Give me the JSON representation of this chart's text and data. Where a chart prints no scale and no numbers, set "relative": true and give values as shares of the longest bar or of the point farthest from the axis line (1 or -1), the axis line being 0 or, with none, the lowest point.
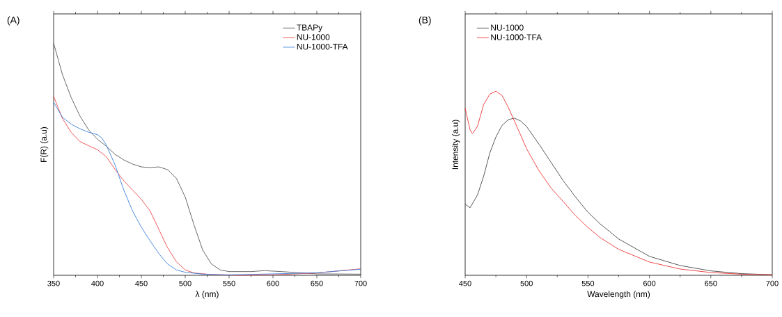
{
  "chart_data": [
    {
      "type": "line",
      "title": "(A)",
      "xlabel": "λ (nm)",
      "ylabel": "F(R) (a.u)",
      "relative": true,
      "tick_labels": "x",
      "legend": "top right",
      "xlim": [
        350,
        700
      ],
      "xticks": [
        350,
        400,
        450,
        500,
        550,
        600,
        650,
        700
      ],
      "series": [
        {
          "name": "TBAPy",
          "color": "#555555",
          "x": [
            350,
            360,
            370,
            380,
            390,
            400,
            410,
            420,
            430,
            440,
            450,
            460,
            470,
            480,
            490,
            500,
            510,
            520,
            530,
            540,
            550,
            575,
            590,
            610,
            650,
            700
          ],
          "values": [
            1.0,
            0.865,
            0.766,
            0.686,
            0.626,
            0.586,
            0.556,
            0.521,
            0.497,
            0.479,
            0.467,
            0.464,
            0.467,
            0.455,
            0.417,
            0.337,
            0.217,
            0.108,
            0.048,
            0.023,
            0.016,
            0.016,
            0.02,
            0.016,
            0.006,
            0.005
          ]
        },
        {
          "name": "NU-1000",
          "color": "#ee4444",
          "x": [
            350,
            360,
            370,
            380,
            390,
            400,
            410,
            420,
            430,
            440,
            450,
            460,
            470,
            480,
            490,
            500,
            510,
            530,
            560,
            600,
            650,
            700
          ],
          "values": [
            0.771,
            0.676,
            0.616,
            0.576,
            0.558,
            0.541,
            0.511,
            0.456,
            0.407,
            0.367,
            0.327,
            0.277,
            0.197,
            0.118,
            0.058,
            0.023,
            0.01,
            0.003,
            0.0,
            0.002,
            0.01,
            0.028
          ]
        },
        {
          "name": "NU-1000-TFA",
          "color": "#3a7fdc",
          "x": [
            350,
            360,
            370,
            380,
            390,
            400,
            405,
            410,
            420,
            430,
            440,
            450,
            460,
            470,
            480,
            490,
            500,
            520,
            550,
            600,
            650,
            700
          ],
          "values": [
            0.746,
            0.681,
            0.651,
            0.631,
            0.616,
            0.606,
            0.591,
            0.561,
            0.476,
            0.367,
            0.277,
            0.207,
            0.148,
            0.093,
            0.048,
            0.023,
            0.013,
            0.005,
            0.002,
            0.006,
            0.011,
            0.026
          ]
        }
      ]
    },
    {
      "type": "line",
      "title": "(B)",
      "xlabel": "Wavelength (nm)",
      "ylabel": "Intensity (a.u)",
      "relative": true,
      "tick_labels": "x",
      "legend": "top left",
      "xlim": [
        450,
        700
      ],
      "xticks": [
        450,
        500,
        550,
        600,
        650,
        700
      ],
      "series": [
        {
          "name": "NU-1000",
          "color": "#444444",
          "x": [
            450,
            454,
            460,
            465,
            470,
            475,
            480,
            485,
            490,
            495,
            500,
            510,
            520,
            530,
            540,
            550,
            560,
            575,
            600,
            625,
            650,
            675,
            700
          ],
          "values": [
            0.386,
            0.367,
            0.436,
            0.537,
            0.663,
            0.751,
            0.814,
            0.845,
            0.854,
            0.839,
            0.808,
            0.713,
            0.613,
            0.512,
            0.424,
            0.342,
            0.279,
            0.197,
            0.103,
            0.053,
            0.024,
            0.009,
            0.003
          ]
        },
        {
          "name": "NU-1000-TFA",
          "color": "#ee3333",
          "x": [
            450,
            454,
            456,
            460,
            465,
            470,
            475,
            480,
            485,
            490,
            495,
            500,
            510,
            520,
            530,
            540,
            550,
            560,
            575,
            600,
            625,
            650,
            675,
            700
          ],
          "values": [
            0.908,
            0.789,
            0.77,
            0.808,
            0.927,
            0.984,
            1.0,
            0.977,
            0.914,
            0.839,
            0.764,
            0.688,
            0.569,
            0.474,
            0.399,
            0.323,
            0.26,
            0.204,
            0.141,
            0.072,
            0.034,
            0.015,
            0.006,
            0.003
          ]
        }
      ]
    }
  ]
}
